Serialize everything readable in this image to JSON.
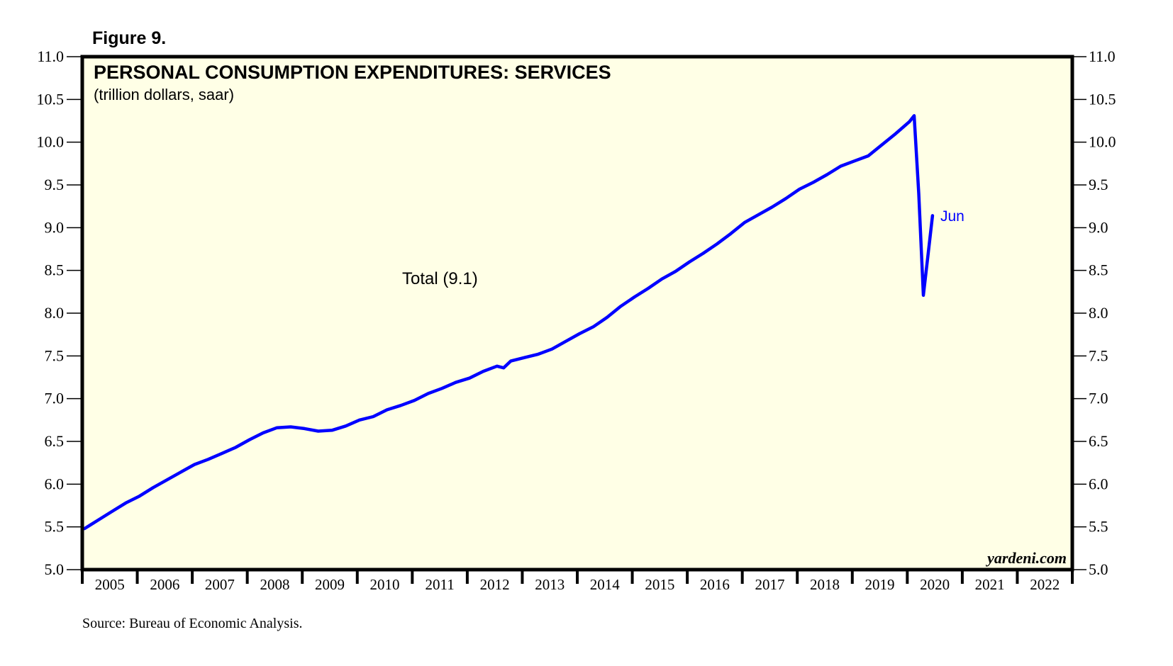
{
  "figure_label": "Figure 9.",
  "source_note": "Source: Bureau of Economic Analysis.",
  "watermark": "yardeni.com",
  "colors": {
    "plot_background": "#ffffe6",
    "series_line": "#0000ff",
    "axis": "#000000"
  },
  "chart_data": {
    "type": "line",
    "title": "PERSONAL CONSUMPTION EXPENDITURES: SERVICES",
    "subtitle": "(trillion dollars, saar)",
    "xlabel": "",
    "ylabel": "",
    "xlim": [
      2005,
      2023
    ],
    "ylim": [
      5.0,
      11.0
    ],
    "y_ticks": [
      "5.0",
      "5.5",
      "6.0",
      "6.5",
      "7.0",
      "7.5",
      "8.0",
      "8.5",
      "9.0",
      "9.5",
      "10.0",
      "10.5",
      "11.0"
    ],
    "y_tick_values": [
      5.0,
      5.5,
      6.0,
      6.5,
      7.0,
      7.5,
      8.0,
      8.5,
      9.0,
      9.5,
      10.0,
      10.5,
      11.0
    ],
    "y_axis_sides": "both",
    "x_ticks": [
      "2005",
      "2006",
      "2007",
      "2008",
      "2009",
      "2010",
      "2011",
      "2012",
      "2013",
      "2014",
      "2015",
      "2016",
      "2017",
      "2018",
      "2019",
      "2020",
      "2021",
      "2022"
    ],
    "grid": false,
    "series": [
      {
        "name": "Total (9.1)",
        "label": "Total (9.1)",
        "end_label": "Jun",
        "x": [
          2005.04,
          2005.29,
          2005.54,
          2005.79,
          2006.04,
          2006.29,
          2006.54,
          2006.79,
          2007.04,
          2007.29,
          2007.54,
          2007.79,
          2008.04,
          2008.29,
          2008.54,
          2008.79,
          2009.04,
          2009.29,
          2009.54,
          2009.79,
          2010.04,
          2010.29,
          2010.54,
          2010.79,
          2011.04,
          2011.29,
          2011.54,
          2011.79,
          2012.04,
          2012.29,
          2012.54,
          2012.66,
          2012.79,
          2013.04,
          2013.29,
          2013.54,
          2013.79,
          2014.04,
          2014.29,
          2014.54,
          2014.79,
          2015.04,
          2015.29,
          2015.54,
          2015.79,
          2016.04,
          2016.29,
          2016.54,
          2016.79,
          2017.04,
          2017.29,
          2017.54,
          2017.79,
          2018.04,
          2018.29,
          2018.54,
          2018.79,
          2019.04,
          2019.29,
          2019.54,
          2019.79,
          2020.04,
          2020.125,
          2020.208,
          2020.292,
          2020.375,
          2020.458
        ],
        "values": [
          5.48,
          5.58,
          5.68,
          5.78,
          5.86,
          5.96,
          6.05,
          6.14,
          6.23,
          6.29,
          6.36,
          6.43,
          6.52,
          6.6,
          6.66,
          6.67,
          6.65,
          6.62,
          6.63,
          6.68,
          6.75,
          6.79,
          6.87,
          6.92,
          6.98,
          7.06,
          7.12,
          7.19,
          7.24,
          7.32,
          7.38,
          7.36,
          7.44,
          7.48,
          7.52,
          7.58,
          7.67,
          7.76,
          7.84,
          7.95,
          8.08,
          8.19,
          8.29,
          8.4,
          8.49,
          8.6,
          8.7,
          8.81,
          8.93,
          9.06,
          9.15,
          9.24,
          9.34,
          9.45,
          9.53,
          9.62,
          9.72,
          9.78,
          9.84,
          9.97,
          10.1,
          10.24,
          10.31,
          9.4,
          8.21,
          8.67,
          9.14
        ]
      }
    ],
    "annotations": [
      {
        "text": "Total (9.1)",
        "position": "center-left"
      },
      {
        "text": "Jun",
        "position": "at series end"
      }
    ],
    "legend": "none"
  }
}
